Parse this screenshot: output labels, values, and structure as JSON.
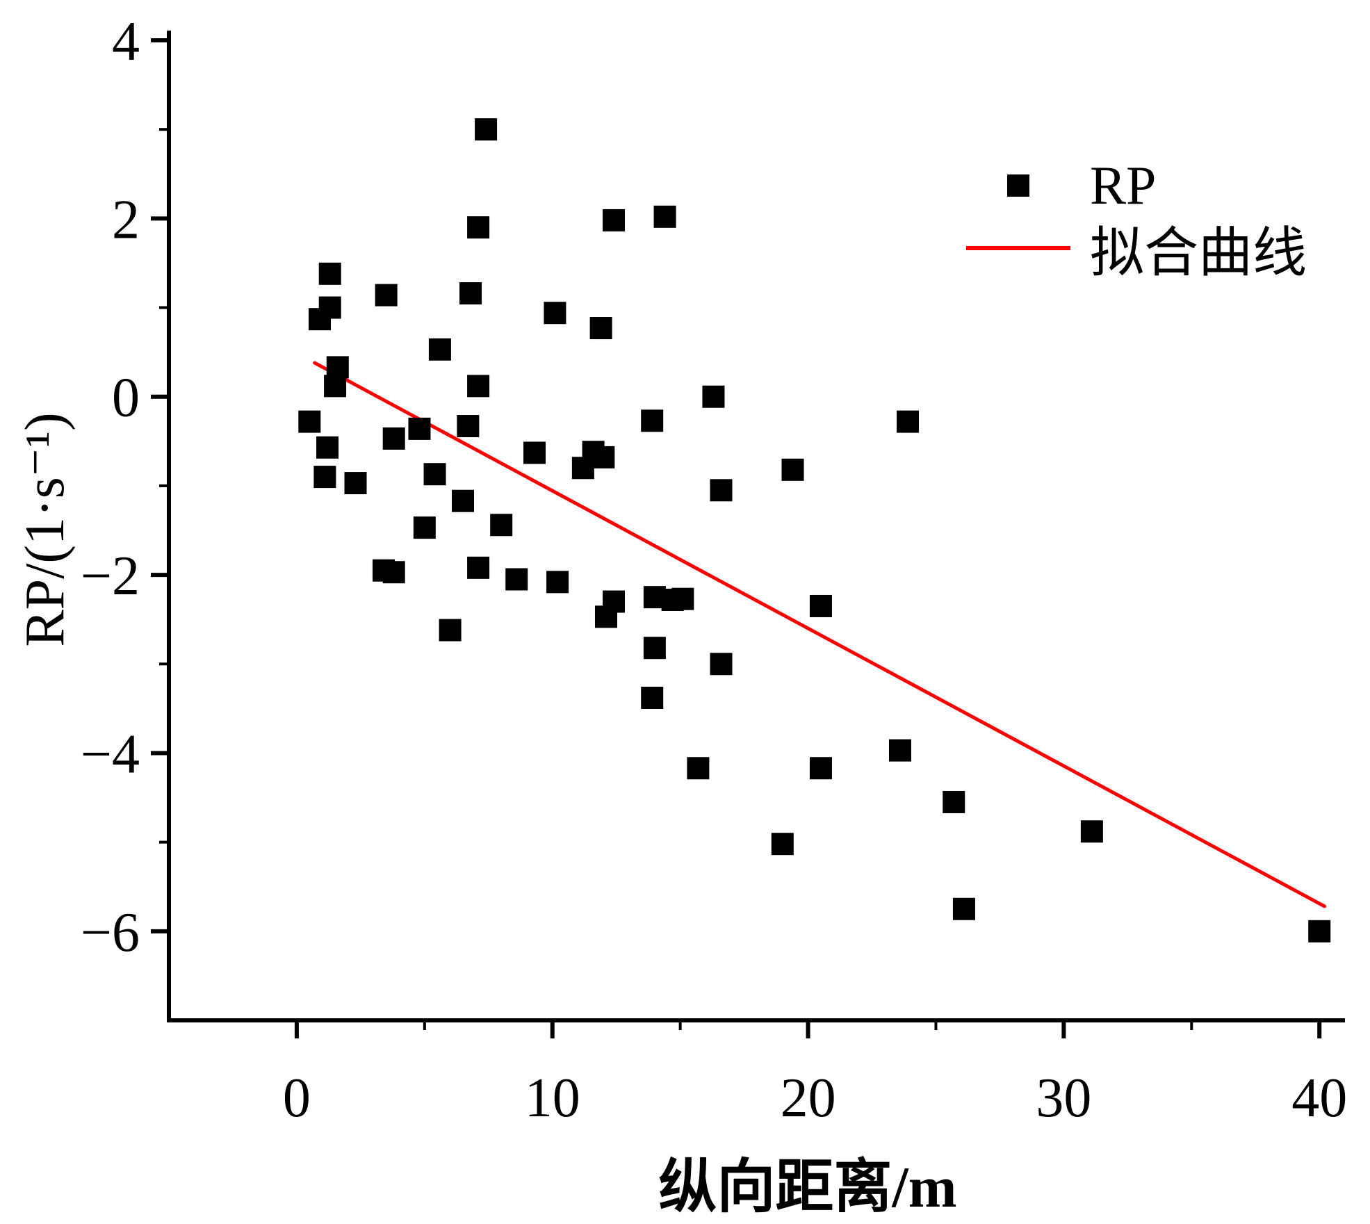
{
  "chart_data": {
    "type": "scatter",
    "title": "",
    "xlabel": "纵向距离/m",
    "ylabel": "RP/(1·s⁻¹)",
    "xlim": [
      -5,
      41
    ],
    "ylim": [
      -7,
      4
    ],
    "grid": false,
    "legend_position": "upper right",
    "marker_color": "#000000",
    "line_color": "#ff0000",
    "axis_color": "#000000",
    "xticks": [
      {
        "v": 0,
        "label": "0"
      },
      {
        "v": 10,
        "label": "10"
      },
      {
        "v": 20,
        "label": "20"
      },
      {
        "v": 30,
        "label": "30"
      },
      {
        "v": 40,
        "label": "40"
      }
    ],
    "xminor": [
      5,
      15,
      25,
      35
    ],
    "yticks": [
      {
        "v": 4,
        "label": "4"
      },
      {
        "v": 2,
        "label": "2"
      },
      {
        "v": 0,
        "label": "0"
      },
      {
        "v": -2,
        "label": "−2"
      },
      {
        "v": -4,
        "label": "−4"
      },
      {
        "v": -6,
        "label": "−6"
      }
    ],
    "yminor": [
      3,
      1,
      -1,
      -3,
      -5
    ],
    "legend": [
      {
        "label": "RP",
        "type": "marker"
      },
      {
        "label": "拟合曲线",
        "type": "line"
      }
    ],
    "series": [
      {
        "name": "RP",
        "points": [
          [
            7.4,
            3.0
          ],
          [
            7.1,
            1.9
          ],
          [
            12.4,
            1.98
          ],
          [
            14.4,
            2.02
          ],
          [
            1.3,
            1.38
          ],
          [
            3.5,
            1.14
          ],
          [
            6.8,
            1.16
          ],
          [
            10.1,
            0.94
          ],
          [
            1.3,
            1.0
          ],
          [
            0.9,
            0.87
          ],
          [
            11.9,
            0.77
          ],
          [
            5.6,
            0.53
          ],
          [
            1.6,
            0.33
          ],
          [
            1.5,
            0.12
          ],
          [
            7.1,
            0.12
          ],
          [
            16.3,
            0.0
          ],
          [
            0.5,
            -0.28
          ],
          [
            13.9,
            -0.27
          ],
          [
            23.9,
            -0.28
          ],
          [
            4.8,
            -0.36
          ],
          [
            6.7,
            -0.33
          ],
          [
            3.8,
            -0.47
          ],
          [
            1.2,
            -0.57
          ],
          [
            9.3,
            -0.63
          ],
          [
            11.6,
            -0.62
          ],
          [
            12.0,
            -0.68
          ],
          [
            11.2,
            -0.8
          ],
          [
            1.1,
            -0.9
          ],
          [
            2.3,
            -0.97
          ],
          [
            19.4,
            -0.82
          ],
          [
            5.4,
            -0.87
          ],
          [
            6.5,
            -1.17
          ],
          [
            16.6,
            -1.05
          ],
          [
            8.0,
            -1.44
          ],
          [
            5.0,
            -1.47
          ],
          [
            3.4,
            -1.95
          ],
          [
            3.8,
            -1.97
          ],
          [
            7.1,
            -1.92
          ],
          [
            8.6,
            -2.05
          ],
          [
            10.2,
            -2.08
          ],
          [
            12.4,
            -2.3
          ],
          [
            14.0,
            -2.25
          ],
          [
            14.7,
            -2.28
          ],
          [
            15.1,
            -2.27
          ],
          [
            12.1,
            -2.47
          ],
          [
            6.0,
            -2.62
          ],
          [
            14.0,
            -2.82
          ],
          [
            16.6,
            -3.0
          ],
          [
            13.9,
            -3.38
          ],
          [
            20.5,
            -2.35
          ],
          [
            23.6,
            -3.97
          ],
          [
            15.7,
            -4.17
          ],
          [
            20.5,
            -4.17
          ],
          [
            25.7,
            -4.55
          ],
          [
            19.0,
            -5.02
          ],
          [
            31.1,
            -4.88
          ],
          [
            26.1,
            -5.75
          ],
          [
            40.0,
            -6.0
          ]
        ]
      }
    ],
    "fit_line": {
      "x1": 0.7,
      "y1": 0.38,
      "x2": 40.2,
      "y2": -5.72
    }
  }
}
